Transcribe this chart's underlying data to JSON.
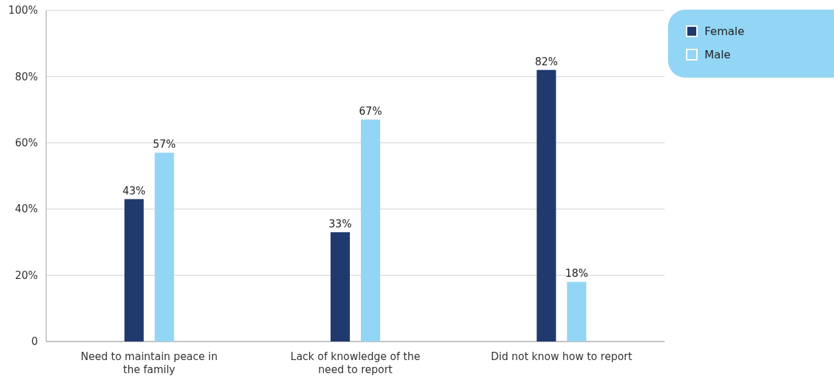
{
  "chart_data": {
    "type": "bar",
    "categories": [
      "Need to maintain peace in the family",
      "Lack of knowledge of the need to report",
      "Did not know how to report"
    ],
    "series": [
      {
        "name": "Female",
        "color": "#203a6e",
        "values": [
          43,
          33,
          82
        ],
        "value_labels": [
          "43%",
          "33%",
          "82%"
        ]
      },
      {
        "name": "Male",
        "color": "#93d5f5",
        "values": [
          57,
          67,
          18
        ],
        "value_labels": [
          "57%",
          "67%",
          "18%"
        ]
      }
    ],
    "ylim": [
      0,
      100
    ],
    "yticks": [
      {
        "value": 0,
        "label": "0"
      },
      {
        "value": 20,
        "label": "20%"
      },
      {
        "value": 40,
        "label": "40%"
      },
      {
        "value": 60,
        "label": "60%"
      },
      {
        "value": 80,
        "label": "80%"
      },
      {
        "value": 100,
        "label": "100%"
      }
    ],
    "grid": "y",
    "legend": "top right"
  }
}
